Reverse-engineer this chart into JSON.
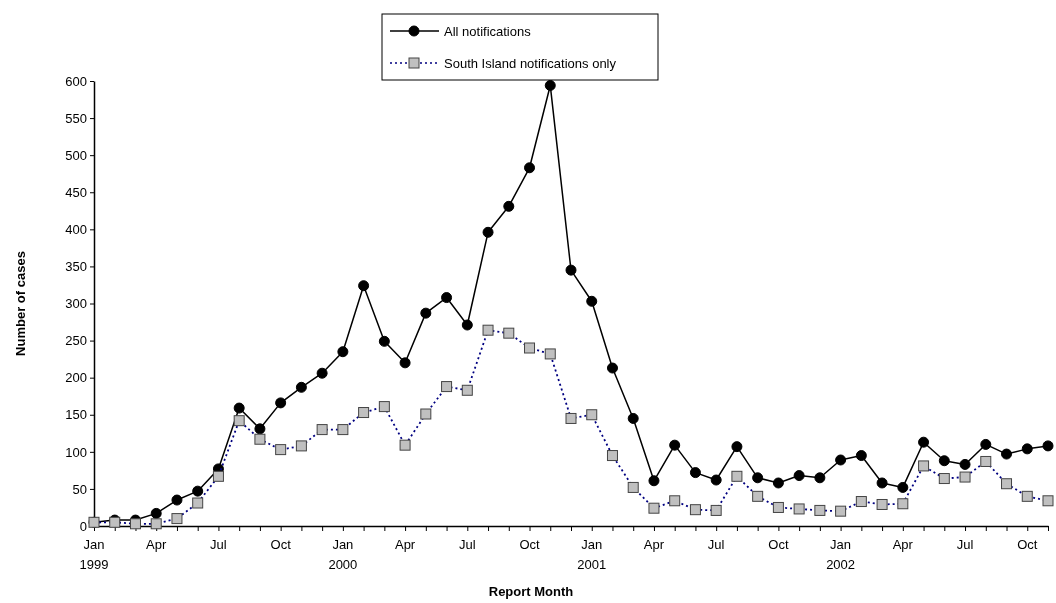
{
  "chart_data": {
    "type": "line",
    "xlabel": "Report Month",
    "ylabel": "Number of cases",
    "categories": [
      "Jan 1999",
      null,
      null,
      "Apr",
      null,
      null,
      "Jul",
      null,
      null,
      "Oct",
      null,
      null,
      "Jan 2000",
      null,
      null,
      "Apr",
      null,
      null,
      "Jul",
      null,
      null,
      "Oct",
      null,
      null,
      "Jan 2001",
      null,
      null,
      "Apr",
      null,
      null,
      "Jul",
      null,
      null,
      "Oct",
      null,
      null,
      "Jan 2002",
      null,
      null,
      "Apr",
      null,
      null,
      "Jul",
      null,
      null,
      "Oct",
      null
    ],
    "ylim": [
      0,
      600
    ],
    "yticks": [
      0,
      50,
      100,
      150,
      200,
      250,
      300,
      350,
      400,
      450,
      500,
      550,
      600
    ],
    "grid": false,
    "legend": "top",
    "series": [
      {
        "name": "All notifications",
        "color": "#000000",
        "marker": "circle",
        "line_style": "solid",
        "values": [
          5,
          8,
          8,
          17,
          35,
          47,
          77,
          159,
          131,
          166,
          187,
          206,
          235,
          324,
          249,
          220,
          287,
          308,
          271,
          396,
          431,
          483,
          594,
          345,
          303,
          213,
          145,
          61,
          109,
          72,
          62,
          107,
          65,
          58,
          68,
          65,
          89,
          95,
          58,
          52,
          113,
          88,
          83,
          110,
          97,
          104,
          108
        ]
      },
      {
        "name": "South Island notifications only",
        "color": "#000080",
        "marker": "square",
        "line_style": "dotted",
        "values": [
          5,
          5,
          3,
          3,
          10,
          31,
          67,
          142,
          117,
          103,
          108,
          130,
          130,
          153,
          161,
          109,
          151,
          188,
          183,
          264,
          260,
          240,
          232,
          145,
          150,
          95,
          52,
          24,
          34,
          22,
          21,
          67,
          40,
          25,
          23,
          21,
          20,
          33,
          29,
          30,
          81,
          64,
          66,
          87,
          57,
          40,
          34
        ]
      }
    ]
  }
}
